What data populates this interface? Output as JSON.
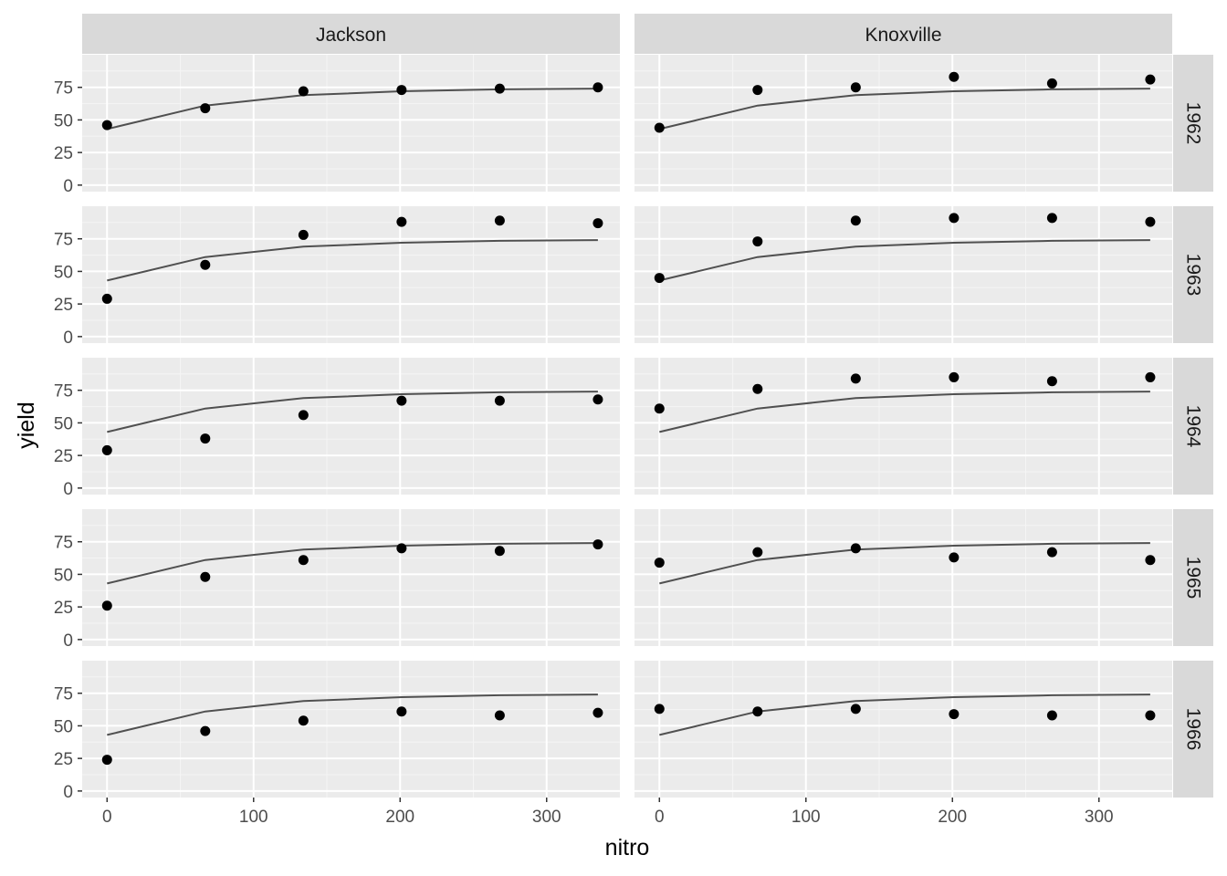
{
  "chart_data": {
    "type": "scatter",
    "xlabel": "nitro",
    "ylabel": "yield",
    "xlim": [
      -17,
      350
    ],
    "ylim": [
      -5,
      100
    ],
    "x_ticks": [
      0,
      100,
      200,
      300
    ],
    "y_ticks": [
      0,
      25,
      50,
      75
    ],
    "grid": true,
    "columns": [
      "Jackson",
      "Knoxville"
    ],
    "rows": [
      "1962",
      "1963",
      "1964",
      "1965",
      "1966"
    ],
    "x": [
      0,
      67,
      134,
      201,
      268,
      335
    ],
    "fitted_line": [
      43,
      61,
      69,
      72,
      73.5,
      74
    ],
    "panels": [
      {
        "column": "Jackson",
        "row": "1962",
        "y": [
          46,
          59,
          72,
          73,
          74,
          75
        ]
      },
      {
        "column": "Knoxville",
        "row": "1962",
        "y": [
          44,
          73,
          75,
          83,
          78,
          81
        ]
      },
      {
        "column": "Jackson",
        "row": "1963",
        "y": [
          29,
          55,
          78,
          88,
          89,
          87
        ]
      },
      {
        "column": "Knoxville",
        "row": "1963",
        "y": [
          45,
          73,
          89,
          91,
          91,
          88
        ]
      },
      {
        "column": "Jackson",
        "row": "1964",
        "y": [
          29,
          38,
          56,
          67,
          67,
          68
        ]
      },
      {
        "column": "Knoxville",
        "row": "1964",
        "y": [
          61,
          76,
          84,
          85,
          82,
          85
        ]
      },
      {
        "column": "Jackson",
        "row": "1965",
        "y": [
          26,
          48,
          61,
          70,
          68,
          73
        ]
      },
      {
        "column": "Knoxville",
        "row": "1965",
        "y": [
          59,
          67,
          70,
          63,
          67,
          61
        ]
      },
      {
        "column": "Jackson",
        "row": "1966",
        "y": [
          24,
          46,
          54,
          61,
          58,
          60
        ]
      },
      {
        "column": "Knoxville",
        "row": "1966",
        "y": [
          63,
          61,
          63,
          59,
          58,
          58
        ]
      }
    ]
  }
}
